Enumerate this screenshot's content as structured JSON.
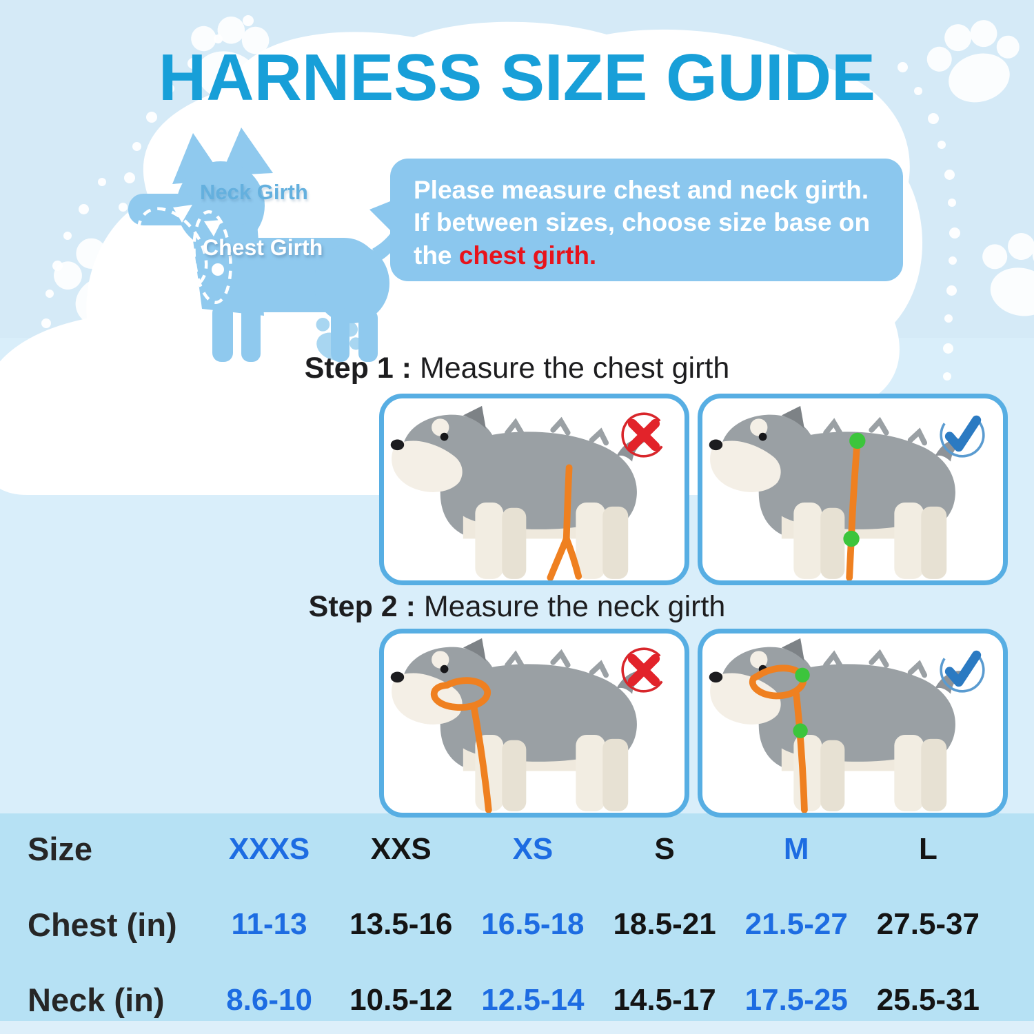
{
  "title": "HARNESS SIZE GUIDE",
  "diagram": {
    "neck_girth_label": "Neck Girth",
    "chest_girth_label": "Chest Girth"
  },
  "speech_bubble": {
    "line1": "Please measure chest and neck girth.",
    "line2": "If between sizes, choose size base on",
    "line3_prefix": "the ",
    "line3_highlight": "chest girth",
    "line3_suffix": ".",
    "highlight_color": "#e8131b"
  },
  "steps": [
    {
      "label_bold": "Step 1 :",
      "label_rest": " Measure the chest girth",
      "cards": [
        {
          "verdict": "wrong",
          "icon": "x-mark-icon"
        },
        {
          "verdict": "correct",
          "icon": "check-mark-icon"
        }
      ]
    },
    {
      "label_bold": "Step 2 :",
      "label_rest": " Measure the neck girth",
      "cards": [
        {
          "verdict": "wrong",
          "icon": "x-mark-icon"
        },
        {
          "verdict": "correct",
          "icon": "check-mark-icon"
        }
      ]
    }
  ],
  "size_table": {
    "row_labels": [
      "Size",
      "Chest (in)",
      "Neck (in)"
    ],
    "sizes": [
      "XXXS",
      "XXS",
      "XS",
      "S",
      "M",
      "L"
    ],
    "chest_in": [
      "11-13",
      "13.5-16",
      "16.5-18",
      "18.5-21",
      "21.5-27",
      "27.5-37"
    ],
    "neck_in": [
      "8.6-10",
      "10.5-12",
      "12.5-14",
      "14.5-17",
      "17.5-25",
      "25.5-31"
    ],
    "alt_text_color": "#1d6ce2",
    "base_text_color": "#141414"
  },
  "colors": {
    "title": "#189fd8",
    "background_top": "#d5eaf7",
    "background_mid": "#d9eefa",
    "table_band": "#b6e1f4",
    "bubble": "#8bc7ee",
    "dog_silhouette": "#8fc9ee",
    "card_border": "#57aee3",
    "measuring_tape": "#ef8020",
    "marker_dot": "#3cc53c",
    "wrong_mark": "#e2232a",
    "correct_mark": "#2b7ac2"
  }
}
